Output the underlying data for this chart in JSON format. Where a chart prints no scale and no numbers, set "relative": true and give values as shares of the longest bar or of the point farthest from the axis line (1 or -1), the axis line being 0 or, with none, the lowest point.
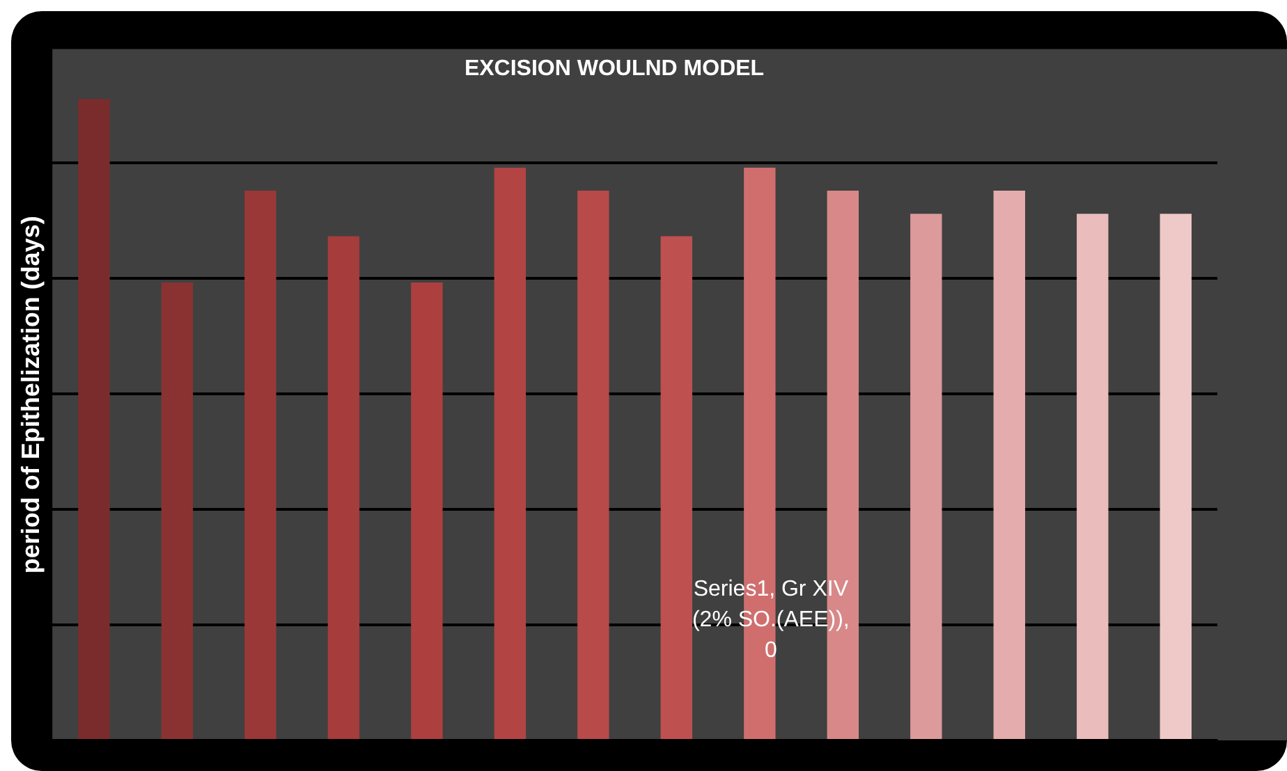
{
  "chart_data": {
    "type": "bar",
    "title": "EXCISION WOULND MODEL",
    "ylabel": "period of Epithelization (days)",
    "relative": true,
    "grid": "y",
    "categories": [
      null,
      null,
      null,
      null,
      null,
      null,
      null,
      null,
      null,
      null,
      null,
      null,
      null,
      null
    ],
    "values": [
      1,
      0.714,
      0.857,
      0.786,
      0.714,
      0.893,
      0.857,
      0.786,
      0.893,
      0.857,
      0.821,
      0.857,
      0.821,
      0.821
    ],
    "colors": [
      "#7a2c2c",
      "#8a3232",
      "#9a3838",
      "#a63c3c",
      "#ad3f3f",
      "#b34444",
      "#b84a4a",
      "#bf5050",
      "#d06e6e",
      "#d88888",
      "#dc9a9a",
      "#e4acac",
      "#eabcbc",
      "#efc8c8"
    ],
    "annotations": [
      "Series1, Gr XIV (2% SO.(AEE)), 0"
    ]
  }
}
